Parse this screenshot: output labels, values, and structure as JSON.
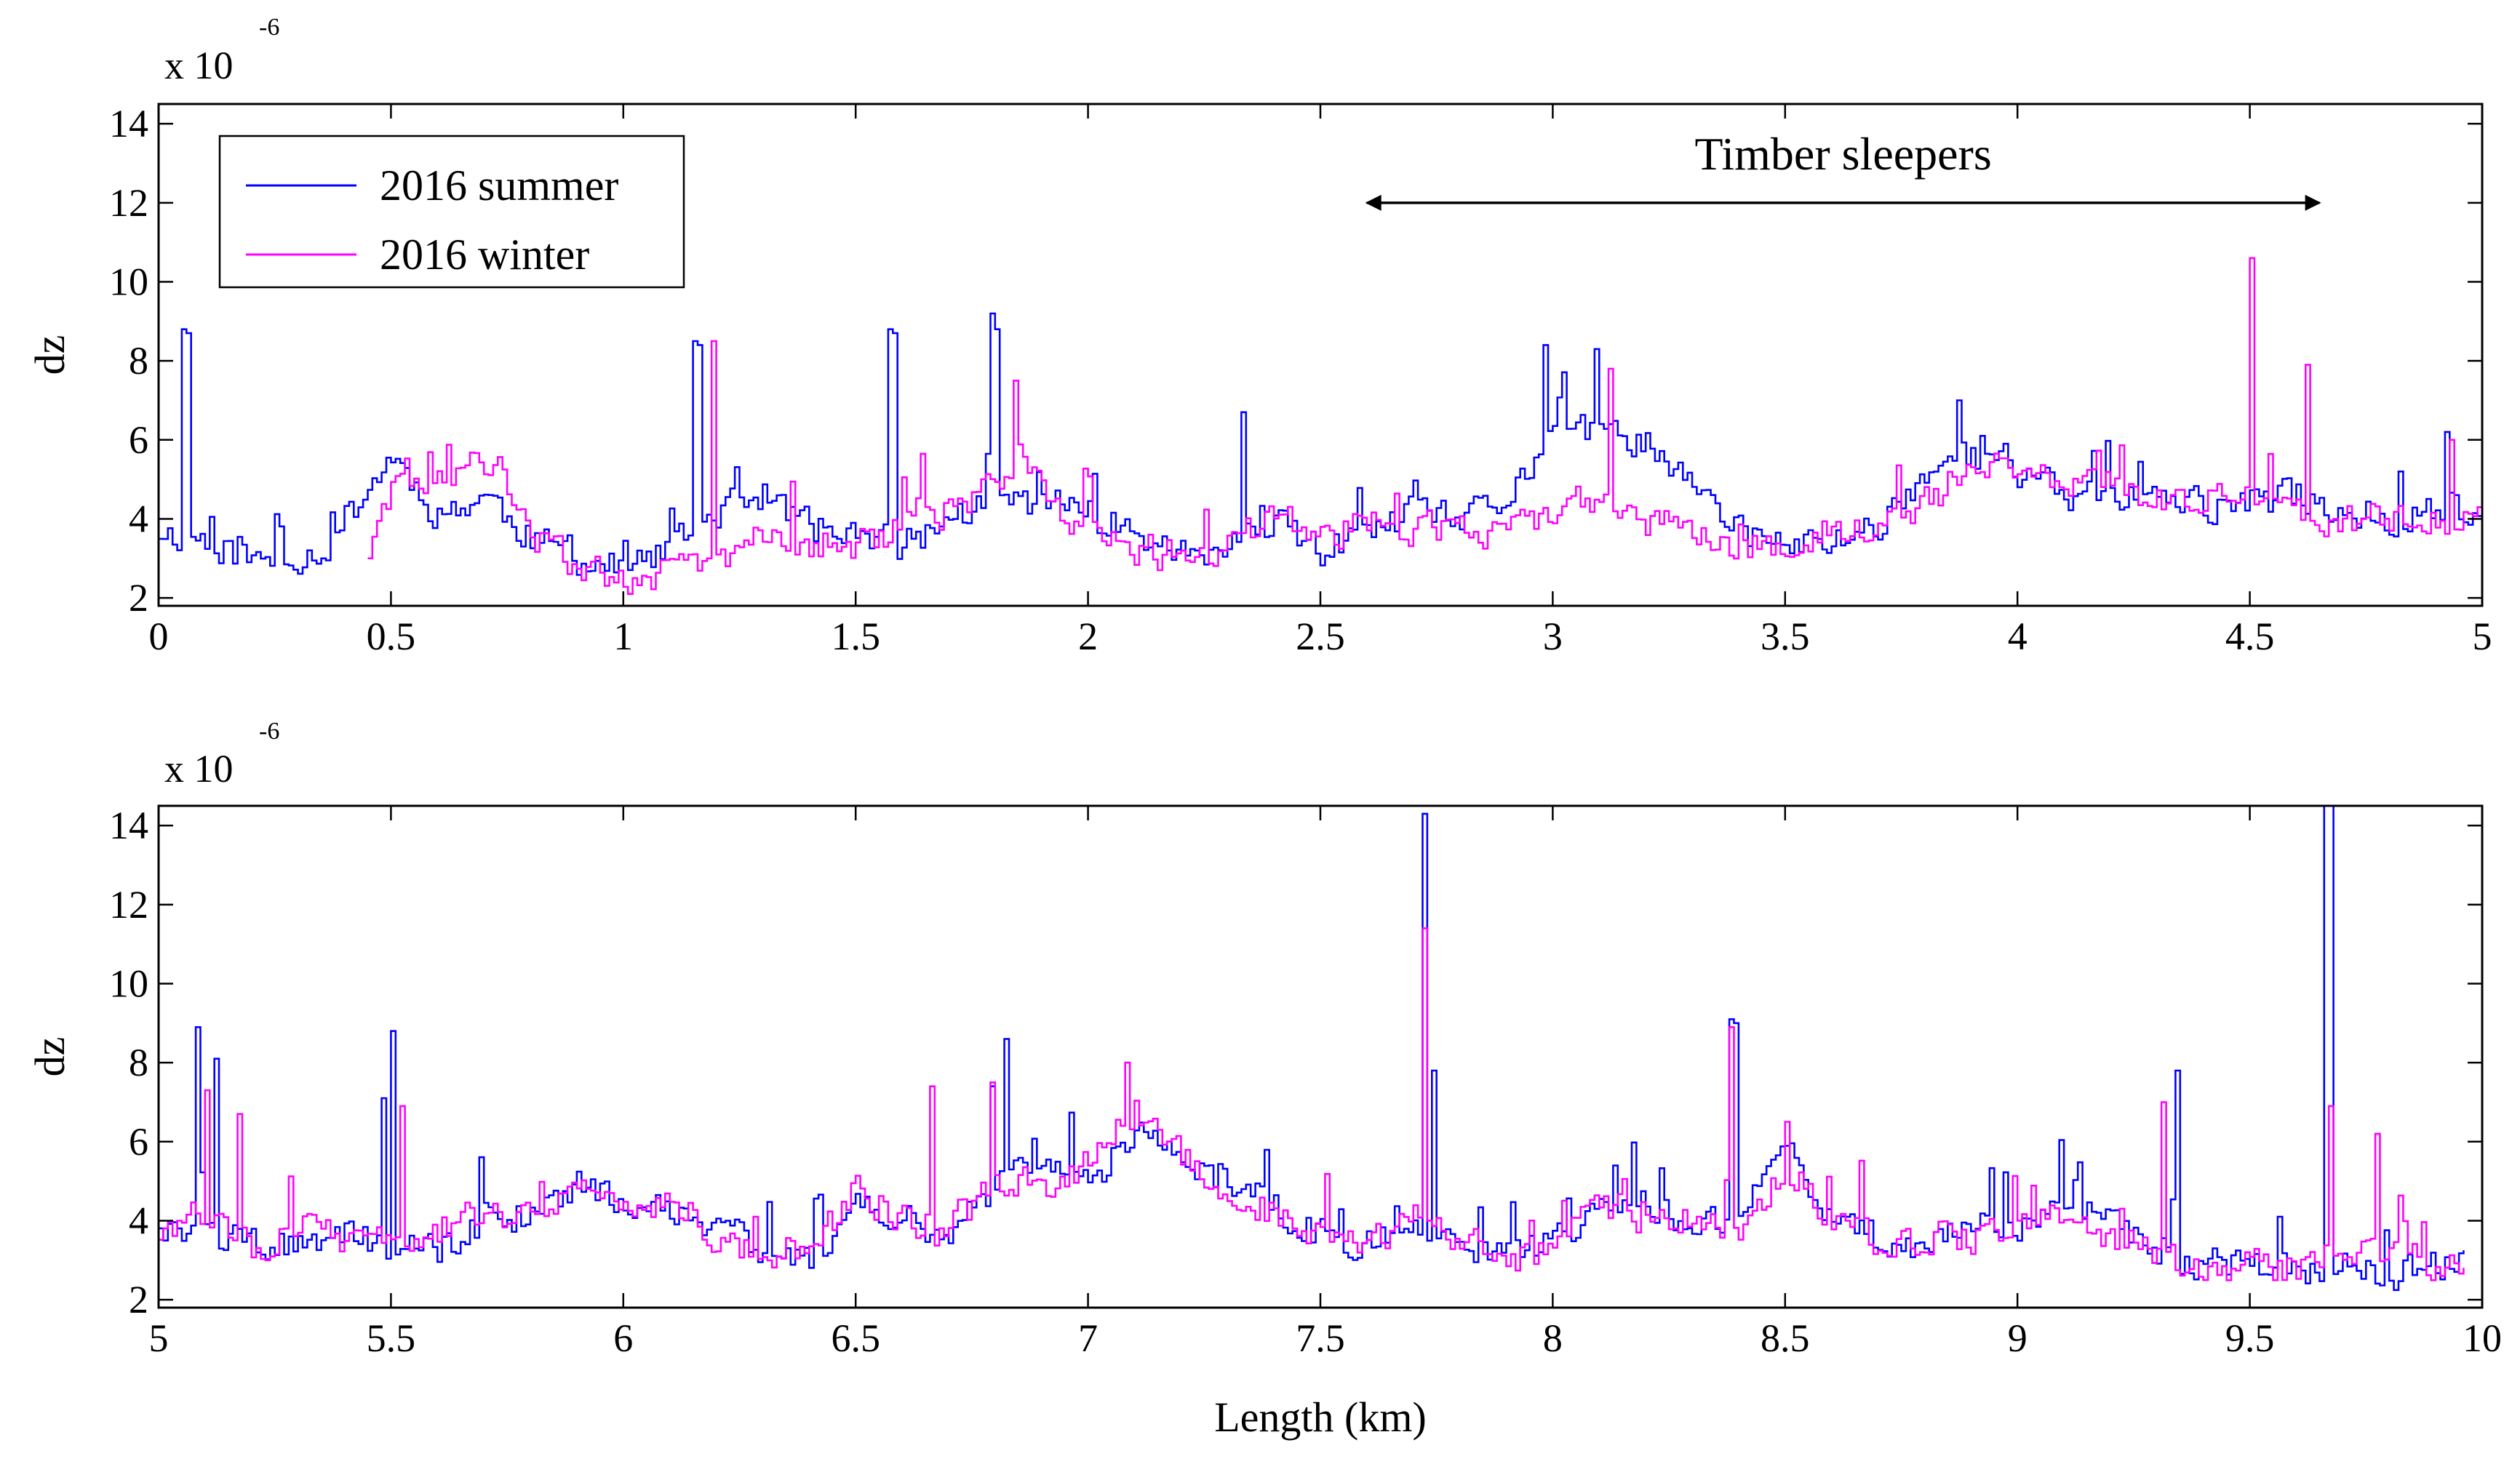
{
  "chart_data": [
    {
      "type": "line",
      "panel": "top",
      "ylabel": "dz",
      "y_exponent_label": "x 10",
      "y_exponent_power": "-6",
      "xlim": [
        0,
        5
      ],
      "ylim": [
        1.8,
        14.5
      ],
      "xticks": [
        0,
        0.5,
        1,
        1.5,
        2,
        2.5,
        3,
        3.5,
        4,
        4.5,
        5
      ],
      "xtick_labels": [
        "0",
        "0.5",
        "1",
        "1.5",
        "2",
        "2.5",
        "3",
        "3.5",
        "4",
        "4.5",
        "5"
      ],
      "yticks": [
        2,
        4,
        6,
        8,
        10,
        12,
        14
      ],
      "ytick_labels": [
        "2",
        "4",
        "6",
        "8",
        "10",
        "12",
        "14"
      ],
      "legend": {
        "placement": "top-left",
        "entries": [
          {
            "name": "2016 summer",
            "color": "#0000ff"
          },
          {
            "name": "2016 winter",
            "color": "#ff00ff"
          }
        ]
      },
      "annotation": {
        "text": "Timber sleepers",
        "x_start": 2.6,
        "x_end": 4.65,
        "y": 12.0
      },
      "step": 0.01,
      "series": [
        {
          "name": "2016 summer",
          "color": "#0000ff",
          "x_start": 0,
          "x_end": 5,
          "anchors": [
            [
              0,
              3.7
            ],
            [
              0.1,
              3.5
            ],
            [
              0.2,
              2.9
            ],
            [
              0.35,
              3.2
            ],
            [
              0.5,
              5.6
            ],
            [
              0.6,
              4.1
            ],
            [
              0.7,
              4.6
            ],
            [
              0.8,
              3.5
            ],
            [
              0.9,
              3.0
            ],
            [
              1.0,
              2.7
            ],
            [
              1.1,
              3.2
            ],
            [
              1.2,
              4.2
            ],
            [
              1.3,
              4.6
            ],
            [
              1.4,
              3.8
            ],
            [
              1.5,
              3.5
            ],
            [
              1.6,
              3.3
            ],
            [
              1.7,
              4.0
            ],
            [
              1.8,
              4.5
            ],
            [
              1.9,
              4.4
            ],
            [
              2.0,
              4.2
            ],
            [
              2.1,
              3.6
            ],
            [
              2.2,
              3.1
            ],
            [
              2.3,
              3.2
            ],
            [
              2.4,
              3.8
            ],
            [
              2.5,
              3.2
            ],
            [
              2.6,
              3.6
            ],
            [
              2.7,
              4.1
            ],
            [
              2.8,
              3.9
            ],
            [
              2.9,
              4.5
            ],
            [
              3.0,
              6.3
            ],
            [
              3.1,
              6.1
            ],
            [
              3.2,
              6.0
            ],
            [
              3.3,
              4.7
            ],
            [
              3.4,
              3.7
            ],
            [
              3.5,
              3.3
            ],
            [
              3.6,
              3.4
            ],
            [
              3.7,
              3.9
            ],
            [
              3.8,
              5.2
            ],
            [
              3.9,
              5.7
            ],
            [
              4.0,
              5.1
            ],
            [
              4.1,
              4.6
            ],
            [
              4.2,
              4.7
            ],
            [
              4.3,
              4.5
            ],
            [
              4.4,
              4.3
            ],
            [
              4.5,
              4.4
            ],
            [
              4.6,
              4.6
            ],
            [
              4.7,
              4.2
            ],
            [
              4.8,
              4.0
            ],
            [
              4.9,
              4.3
            ],
            [
              5.0,
              4.0
            ]
          ],
          "spikes": [
            [
              0.05,
              8.8
            ],
            [
              0.06,
              8.7
            ],
            [
              1.15,
              8.5
            ],
            [
              1.16,
              8.4
            ],
            [
              1.57,
              8.8
            ],
            [
              1.58,
              8.7
            ],
            [
              1.79,
              9.2
            ],
            [
              1.8,
              8.8
            ],
            [
              2.33,
              6.7
            ],
            [
              2.98,
              8.4
            ],
            [
              3.09,
              8.3
            ],
            [
              3.87,
              7.0
            ],
            [
              4.92,
              6.2
            ]
          ],
          "seed": 11,
          "noise": 0.55
        },
        {
          "name": "2016 winter",
          "color": "#ff00ff",
          "x_start": 0.45,
          "x_end": 5,
          "anchors": [
            [
              0.45,
              3.2
            ],
            [
              0.5,
              4.6
            ],
            [
              0.6,
              4.8
            ],
            [
              0.7,
              5.5
            ],
            [
              0.8,
              3.6
            ],
            [
              0.9,
              2.7
            ],
            [
              1.0,
              2.6
            ],
            [
              1.1,
              2.6
            ],
            [
              1.2,
              3.0
            ],
            [
              1.3,
              3.6
            ],
            [
              1.4,
              3.4
            ],
            [
              1.5,
              3.3
            ],
            [
              1.6,
              3.8
            ],
            [
              1.7,
              4.2
            ],
            [
              1.8,
              4.8
            ],
            [
              1.85,
              5.9
            ],
            [
              1.9,
              4.6
            ],
            [
              2.0,
              3.8
            ],
            [
              2.1,
              3.3
            ],
            [
              2.2,
              3.0
            ],
            [
              2.3,
              3.2
            ],
            [
              2.4,
              4.2
            ],
            [
              2.5,
              3.6
            ],
            [
              2.6,
              3.9
            ],
            [
              2.7,
              3.7
            ],
            [
              2.8,
              3.9
            ],
            [
              2.9,
              3.5
            ],
            [
              3.0,
              4.3
            ],
            [
              3.1,
              4.6
            ],
            [
              3.2,
              4.0
            ],
            [
              3.3,
              3.6
            ],
            [
              3.4,
              3.4
            ],
            [
              3.5,
              3.2
            ],
            [
              3.6,
              3.8
            ],
            [
              3.7,
              3.7
            ],
            [
              3.8,
              4.3
            ],
            [
              3.9,
              5.4
            ],
            [
              4.0,
              5.4
            ],
            [
              4.1,
              5.0
            ],
            [
              4.2,
              4.8
            ],
            [
              4.3,
              4.5
            ],
            [
              4.4,
              4.4
            ],
            [
              4.5,
              4.5
            ],
            [
              4.6,
              4.3
            ],
            [
              4.7,
              3.9
            ],
            [
              4.8,
              4.1
            ],
            [
              4.9,
              3.9
            ],
            [
              5.0,
              4.0
            ]
          ],
          "spikes": [
            [
              1.19,
              8.5
            ],
            [
              1.84,
              7.5
            ],
            [
              3.12,
              7.8
            ],
            [
              4.5,
              10.6
            ],
            [
              4.62,
              7.9
            ],
            [
              4.93,
              6.0
            ]
          ],
          "seed": 29,
          "noise": 0.55
        }
      ]
    },
    {
      "type": "line",
      "panel": "bottom",
      "ylabel": "dz",
      "xlabel": "Length (km)",
      "y_exponent_label": "x 10",
      "y_exponent_power": "-6",
      "xlim": [
        5,
        10
      ],
      "ylim": [
        1.8,
        14.5
      ],
      "xticks": [
        5,
        5.5,
        6,
        6.5,
        7,
        7.5,
        8,
        8.5,
        9,
        9.5,
        10
      ],
      "xtick_labels": [
        "5",
        "5.5",
        "6",
        "6.5",
        "7",
        "7.5",
        "8",
        "8.5",
        "9",
        "9.5",
        "10"
      ],
      "yticks": [
        2,
        4,
        6,
        8,
        10,
        12,
        14
      ],
      "ytick_labels": [
        "2",
        "4",
        "6",
        "8",
        "10",
        "12",
        "14"
      ],
      "step": 0.01,
      "series": [
        {
          "name": "2016 summer",
          "color": "#0000ff",
          "x_start": 5,
          "x_end": 9.96,
          "anchors": [
            [
              5.0,
              4.0
            ],
            [
              5.1,
              3.6
            ],
            [
              5.2,
              3.3
            ],
            [
              5.3,
              3.5
            ],
            [
              5.4,
              3.6
            ],
            [
              5.5,
              3.4
            ],
            [
              5.6,
              3.3
            ],
            [
              5.7,
              4.0
            ],
            [
              5.8,
              4.2
            ],
            [
              5.9,
              4.8
            ],
            [
              6.0,
              4.6
            ],
            [
              6.1,
              4.4
            ],
            [
              6.2,
              3.8
            ],
            [
              6.3,
              3.2
            ],
            [
              6.4,
              3.1
            ],
            [
              6.5,
              4.6
            ],
            [
              6.6,
              4.2
            ],
            [
              6.7,
              3.6
            ],
            [
              6.8,
              5.0
            ],
            [
              6.9,
              5.5
            ],
            [
              7.0,
              5.0
            ],
            [
              7.1,
              6.2
            ],
            [
              7.2,
              5.8
            ],
            [
              7.3,
              4.8
            ],
            [
              7.4,
              4.4
            ],
            [
              7.5,
              3.6
            ],
            [
              7.6,
              3.4
            ],
            [
              7.7,
              3.8
            ],
            [
              7.8,
              3.4
            ],
            [
              7.9,
              3.2
            ],
            [
              8.0,
              3.4
            ],
            [
              8.1,
              4.3
            ],
            [
              8.2,
              4.4
            ],
            [
              8.3,
              4.0
            ],
            [
              8.4,
              3.9
            ],
            [
              8.5,
              5.7
            ],
            [
              8.6,
              4.2
            ],
            [
              8.7,
              3.5
            ],
            [
              8.8,
              3.4
            ],
            [
              8.9,
              3.8
            ],
            [
              9.0,
              4.0
            ],
            [
              9.1,
              4.4
            ],
            [
              9.2,
              3.9
            ],
            [
              9.3,
              3.2
            ],
            [
              9.4,
              2.8
            ],
            [
              9.5,
              3.0
            ],
            [
              9.6,
              2.8
            ],
            [
              9.7,
              2.9
            ],
            [
              9.8,
              2.7
            ],
            [
              9.9,
              2.8
            ],
            [
              9.96,
              3.2
            ]
          ],
          "spikes": [
            [
              5.08,
              8.9
            ],
            [
              5.12,
              8.1
            ],
            [
              5.48,
              7.1
            ],
            [
              5.5,
              8.8
            ],
            [
              6.79,
              7.4
            ],
            [
              6.82,
              8.6
            ],
            [
              7.72,
              14.3
            ],
            [
              7.74,
              7.8
            ],
            [
              8.38,
              9.1
            ],
            [
              8.39,
              9.0
            ],
            [
              9.34,
              7.8
            ],
            [
              9.66,
              14.5
            ],
            [
              9.67,
              14.5
            ]
          ],
          "seed": 47,
          "noise": 0.55
        },
        {
          "name": "2016 winter",
          "color": "#ff00ff",
          "x_start": 5,
          "x_end": 9.96,
          "anchors": [
            [
              5.0,
              3.7
            ],
            [
              5.1,
              4.2
            ],
            [
              5.2,
              3.4
            ],
            [
              5.3,
              3.9
            ],
            [
              5.4,
              3.5
            ],
            [
              5.5,
              3.5
            ],
            [
              5.6,
              3.8
            ],
            [
              5.7,
              4.3
            ],
            [
              5.8,
              4.0
            ],
            [
              5.9,
              5.0
            ],
            [
              6.0,
              4.4
            ],
            [
              6.1,
              4.6
            ],
            [
              6.2,
              3.5
            ],
            [
              6.3,
              3.3
            ],
            [
              6.4,
              3.2
            ],
            [
              6.5,
              4.8
            ],
            [
              6.6,
              4.0
            ],
            [
              6.7,
              3.8
            ],
            [
              6.8,
              5.0
            ],
            [
              6.9,
              4.8
            ],
            [
              7.0,
              5.5
            ],
            [
              7.1,
              6.8
            ],
            [
              7.2,
              5.6
            ],
            [
              7.3,
              4.6
            ],
            [
              7.4,
              4.2
            ],
            [
              7.5,
              3.6
            ],
            [
              7.6,
              3.5
            ],
            [
              7.7,
              4.0
            ],
            [
              7.8,
              3.5
            ],
            [
              7.9,
              3.0
            ],
            [
              8.0,
              3.4
            ],
            [
              8.1,
              4.4
            ],
            [
              8.2,
              4.0
            ],
            [
              8.3,
              4.0
            ],
            [
              8.4,
              3.8
            ],
            [
              8.5,
              5.4
            ],
            [
              8.6,
              4.0
            ],
            [
              8.7,
              3.4
            ],
            [
              8.8,
              3.5
            ],
            [
              8.9,
              3.6
            ],
            [
              9.0,
              3.8
            ],
            [
              9.1,
              4.1
            ],
            [
              9.2,
              3.4
            ],
            [
              9.3,
              3.1
            ],
            [
              9.4,
              2.8
            ],
            [
              9.5,
              2.9
            ],
            [
              9.6,
              2.8
            ],
            [
              9.7,
              3.3
            ],
            [
              9.8,
              3.3
            ],
            [
              9.9,
              2.7
            ],
            [
              9.96,
              2.7
            ]
          ],
          "spikes": [
            [
              5.1,
              7.3
            ],
            [
              5.17,
              6.7
            ],
            [
              5.52,
              6.9
            ],
            [
              6.66,
              7.4
            ],
            [
              6.79,
              7.5
            ],
            [
              7.08,
              8.0
            ],
            [
              7.72,
              11.4
            ],
            [
              8.38,
              8.9
            ],
            [
              9.31,
              7.0
            ],
            [
              9.67,
              6.9
            ],
            [
              9.77,
              6.2
            ]
          ],
          "seed": 83,
          "noise": 0.55
        }
      ]
    }
  ]
}
